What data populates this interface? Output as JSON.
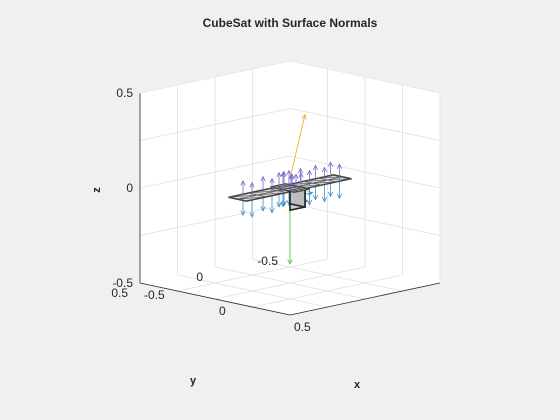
{
  "figure": {
    "title": "CubeSat with Surface Normals"
  },
  "chart_data": {
    "type": "3d-surface",
    "title": "CubeSat with Surface Normals",
    "xlabel": "x",
    "ylabel": "y",
    "zlabel": "z",
    "xlim": [
      -0.5,
      0.5
    ],
    "ylim": [
      -0.5,
      0.5
    ],
    "zlim": [
      -0.5,
      0.5
    ],
    "x_ticks": [
      "-0.5",
      "0",
      "0.5"
    ],
    "y_ticks": [
      "-0.5",
      "0",
      "0.5"
    ],
    "z_ticks": [
      "-0.5",
      "0",
      "0.5"
    ],
    "grid": true,
    "box": true,
    "colors": {
      "background": "#f0f0f0",
      "axes_face": "#ffffff",
      "grid": "#e0e0e0",
      "panel_face": "#d9d9d9",
      "panel_edge": "#262626",
      "normal_up": "#7a68c6",
      "normal_down": "#3a8fc9",
      "sun_vector": "#f0b030",
      "nadir_vector": "#58c858"
    },
    "panels": [
      {
        "name": "solar-panel-left",
        "corners": [
          [
            -0.06,
            0.35,
            0.0
          ],
          [
            -0.06,
            -0.05,
            0.0
          ],
          [
            0.06,
            -0.05,
            0.0
          ],
          [
            0.06,
            0.35,
            0.0
          ]
        ]
      },
      {
        "name": "solar-panel-center",
        "corners": [
          [
            0.08,
            -0.05,
            0.0
          ],
          [
            0.08,
            0.05,
            0.0
          ],
          [
            -0.08,
            0.05,
            0.0
          ],
          [
            -0.08,
            -0.05,
            0.0
          ]
        ]
      },
      {
        "name": "solar-panel-right",
        "corners": [
          [
            -0.06,
            -0.05,
            0.0
          ],
          [
            -0.06,
            -0.35,
            0.0
          ],
          [
            0.06,
            -0.35,
            0.0
          ],
          [
            0.06,
            -0.05,
            0.0
          ]
        ]
      }
    ],
    "body": {
      "name": "cubesat-body",
      "min": [
        -0.05,
        -0.05,
        -0.1
      ],
      "max": [
        0.05,
        0.05,
        0.0
      ]
    },
    "vectors": [
      {
        "name": "sun-vector",
        "from": [
          0.0,
          0.0,
          0.05
        ],
        "to": [
          0.15,
          0.05,
          0.42
        ],
        "color": "#f0b030"
      },
      {
        "name": "nadir-vector",
        "from": [
          0.0,
          0.0,
          -0.1
        ],
        "to": [
          0.0,
          0.0,
          -0.4
        ],
        "color": "#58c858"
      }
    ]
  }
}
